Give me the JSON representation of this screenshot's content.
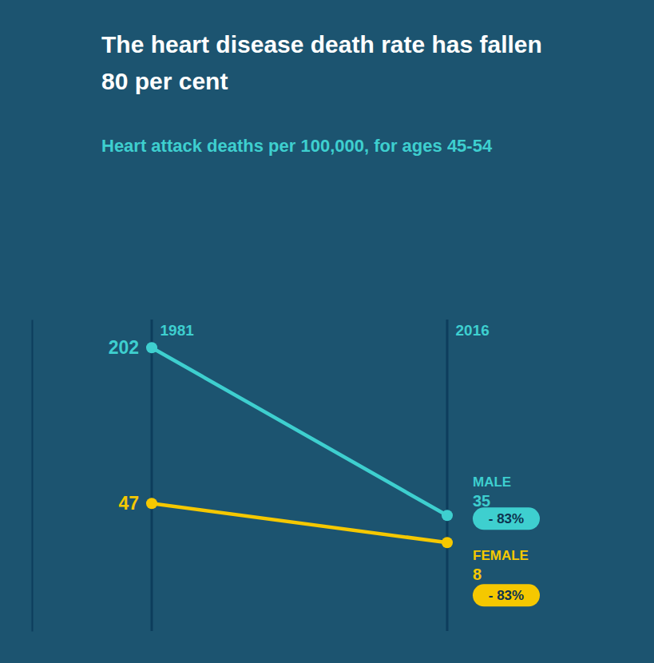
{
  "chart_data": {
    "type": "line",
    "title": "The heart disease death rate has fallen 80 per cent",
    "subtitle": "Heart attack deaths per 100,000, for ages 45-54",
    "categories": [
      "1981",
      "2016"
    ],
    "series": [
      {
        "name": "MALE",
        "color": "#3ecfcf",
        "values": [
          202,
          35
        ]
      },
      {
        "name": "FEMALE",
        "color": "#f5c800",
        "values": [
          47,
          8
        ]
      }
    ],
    "annotations": [
      "- 83%",
      "- 83%"
    ],
    "ylim": [
      -80,
      230
    ],
    "tick_labels": "x",
    "data_labels": true,
    "marker": "circle"
  }
}
